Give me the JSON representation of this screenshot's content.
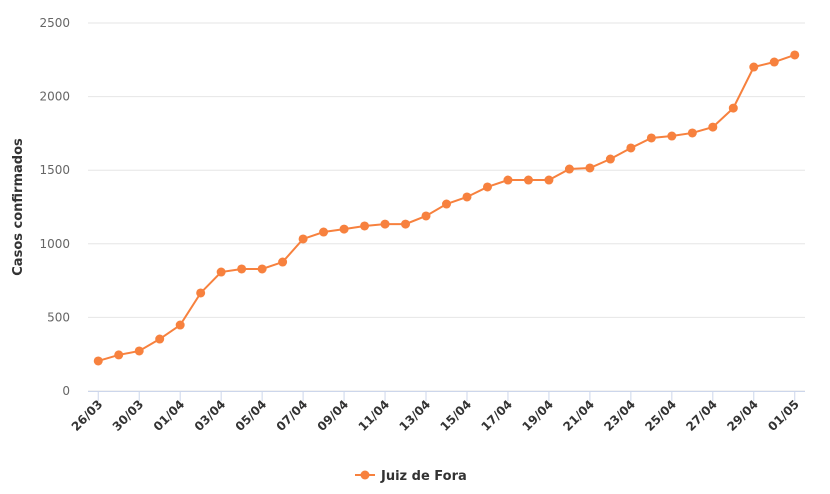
{
  "chart_data": {
    "type": "line",
    "y_label": "Casos confirmados",
    "categories": [
      "26/03",
      null,
      "30/03",
      null,
      "01/04",
      null,
      "03/04",
      null,
      "05/04",
      null,
      "07/04",
      null,
      "09/04",
      null,
      "11/04",
      null,
      "13/04",
      null,
      "15/04",
      null,
      "17/04",
      null,
      "19/04",
      null,
      "21/04",
      null,
      "23/04",
      null,
      "25/04",
      null,
      "27/04",
      null,
      "29/04",
      null,
      "01/05"
    ],
    "series": [
      {
        "name": "Juiz de Fora",
        "color": "#f7813e",
        "values": [
          204,
          245,
          272,
          353,
          448,
          666,
          808,
          829,
          829,
          876,
          1033,
          1080,
          1100,
          1121,
          1134,
          1134,
          1189,
          1270,
          1318,
          1386,
          1433,
          1433,
          1433,
          1508,
          1515,
          1576,
          1651,
          1719,
          1732,
          1753,
          1793,
          1922,
          2201,
          2235,
          2283
        ]
      }
    ],
    "ylim": [
      0,
      2500
    ],
    "yticks": [
      0,
      500,
      1000,
      1500,
      2000,
      2500
    ],
    "grid": true,
    "legend": "bottom"
  }
}
